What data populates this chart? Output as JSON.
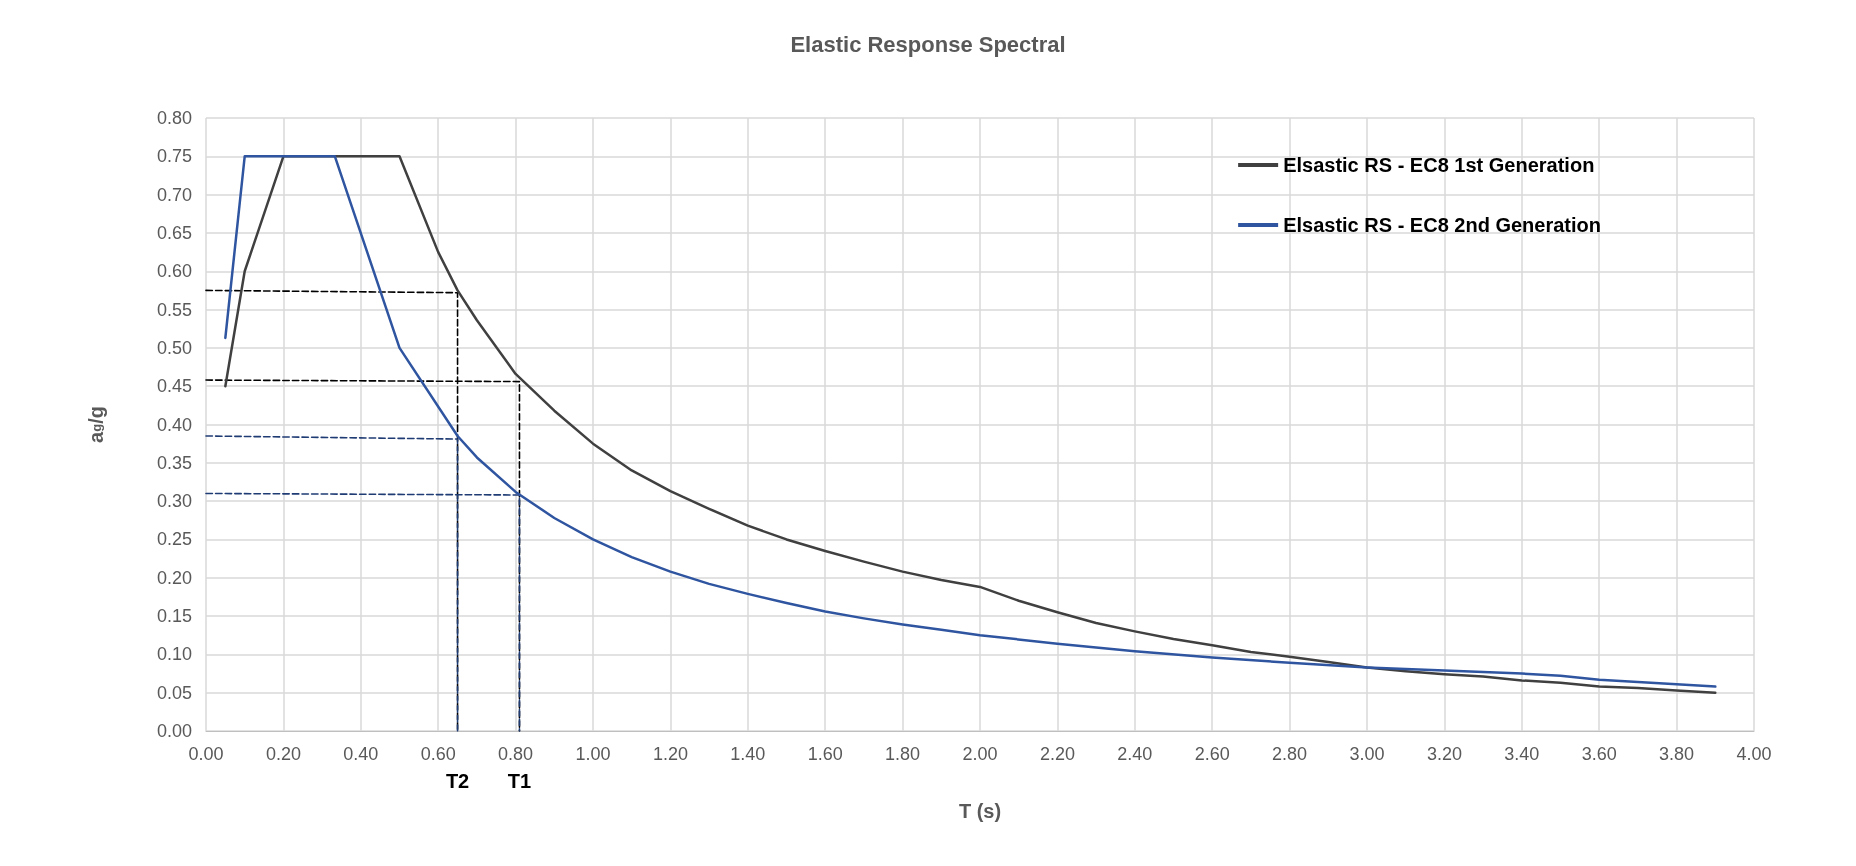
{
  "chart_data": {
    "type": "line",
    "title": "Elastic Response Spectral",
    "xlabel": "T (s)",
    "ylabel": "a$_{g}$/g",
    "xlim": [
      0,
      4
    ],
    "xticks": [
      {
        "value": 0,
        "label": "0.00"
      },
      {
        "value": 0.2,
        "label": "0.20"
      },
      {
        "value": 0.4,
        "label": "0.40"
      },
      {
        "value": 0.6,
        "label": "0.60"
      },
      {
        "value": 0.8,
        "label": "0.80"
      },
      {
        "value": 1,
        "label": "1.00"
      },
      {
        "value": 1.2,
        "label": "1.20"
      },
      {
        "value": 1.4,
        "label": "1.40"
      },
      {
        "value": 1.6,
        "label": "1.60"
      },
      {
        "value": 1.8,
        "label": "1.80"
      },
      {
        "value": 2,
        "label": "2.00"
      },
      {
        "value": 2.2,
        "label": "2.20"
      },
      {
        "value": 2.4,
        "label": "2.40"
      },
      {
        "value": 2.6,
        "label": "2.60"
      },
      {
        "value": 2.8,
        "label": "2.80"
      },
      {
        "value": 3,
        "label": "3.00"
      },
      {
        "value": 3.2,
        "label": "3.20"
      },
      {
        "value": 3.4,
        "label": "3.40"
      },
      {
        "value": 3.6,
        "label": "3.60"
      },
      {
        "value": 3.8,
        "label": "3.80"
      },
      {
        "value": 4,
        "label": "4.00"
      }
    ],
    "ylim": [
      0,
      0.8
    ],
    "yticks": [
      {
        "value": 0,
        "label": "0.00"
      },
      {
        "value": 0.05,
        "label": "0.05"
      },
      {
        "value": 0.1,
        "label": "0.10"
      },
      {
        "value": 0.15,
        "label": "0.15"
      },
      {
        "value": 0.2,
        "label": "0.20"
      },
      {
        "value": 0.25,
        "label": "0.25"
      },
      {
        "value": 0.3,
        "label": "0.30"
      },
      {
        "value": 0.35,
        "label": "0.35"
      },
      {
        "value": 0.4,
        "label": "0.40"
      },
      {
        "value": 0.45,
        "label": "0.45"
      },
      {
        "value": 0.5,
        "label": "0.50"
      },
      {
        "value": 0.55,
        "label": "0.55"
      },
      {
        "value": 0.6,
        "label": "0.60"
      },
      {
        "value": 0.65,
        "label": "0.65"
      },
      {
        "value": 0.7,
        "label": "0.70"
      },
      {
        "value": 0.75,
        "label": "0.75"
      },
      {
        "value": 0.8,
        "label": "0.80"
      }
    ],
    "grid": true,
    "legend": "top right",
    "line_style": "solid",
    "series": [
      {
        "name": "Elsastic RS - EC8 1st Generation",
        "color": "#404040",
        "x": [
          0.05,
          0.1,
          0.2,
          0.5,
          0.6,
          0.65,
          0.7,
          0.8,
          0.9,
          1.0,
          1.1,
          1.2,
          1.3,
          1.4,
          1.5,
          1.6,
          1.7,
          1.8,
          1.9,
          2.0,
          2.1,
          2.2,
          2.3,
          2.4,
          2.5,
          2.6,
          2.7,
          2.8,
          2.9,
          3.0,
          3.1,
          3.2,
          3.3,
          3.4,
          3.5,
          3.6,
          3.7,
          3.8,
          3.9
        ],
        "values": [
          0.45,
          0.6,
          0.75,
          0.75,
          0.625,
          0.575,
          0.536,
          0.466,
          0.418,
          0.375,
          0.34,
          0.313,
          0.29,
          0.268,
          0.25,
          0.235,
          0.221,
          0.208,
          0.197,
          0.188,
          0.17,
          0.155,
          0.141,
          0.13,
          0.12,
          0.112,
          0.103,
          0.097,
          0.09,
          0.083,
          0.078,
          0.074,
          0.071,
          0.066,
          0.063,
          0.058,
          0.056,
          0.053,
          0.05
        ]
      },
      {
        "name": "Elsastic RS - EC8 2nd Generation",
        "color": "#2f55a0",
        "x": [
          0.05,
          0.1,
          0.333,
          0.5,
          0.65,
          0.7,
          0.8,
          0.9,
          1.0,
          1.1,
          1.2,
          1.3,
          1.4,
          1.5,
          1.6,
          1.7,
          1.8,
          1.9,
          2.0,
          2.2,
          2.4,
          2.6,
          2.8,
          3.0,
          3.2,
          3.4,
          3.5,
          3.6,
          3.8,
          3.9
        ],
        "values": [
          0.513,
          0.75,
          0.75,
          0.5,
          0.385,
          0.357,
          0.312,
          0.278,
          0.25,
          0.227,
          0.208,
          0.192,
          0.179,
          0.167,
          0.156,
          0.147,
          0.139,
          0.132,
          0.125,
          0.114,
          0.104,
          0.096,
          0.089,
          0.083,
          0.079,
          0.075,
          0.072,
          0.067,
          0.061,
          0.058
        ]
      },
      {
        "color": "#000000",
        "line_style": "dashed",
        "x": [
          0,
          0.65,
          0.65
        ],
        "values": [
          0.575,
          0.572,
          0
        ]
      },
      {
        "color": "#000000",
        "line_style": "dashed",
        "x": [
          0,
          0.81,
          0.81
        ],
        "values": [
          0.458,
          0.456,
          0
        ]
      },
      {
        "color": "#1f3b73",
        "line_style": "dashed",
        "x": [
          0,
          0.65,
          0.65
        ],
        "values": [
          0.385,
          0.381,
          0
        ]
      },
      {
        "color": "#1f3b73",
        "line_style": "dashed",
        "x": [
          0,
          0.81,
          0.81
        ],
        "values": [
          0.31,
          0.308,
          0
        ]
      }
    ],
    "annotations": [
      {
        "text": "T2",
        "x": 0.65,
        "y": 0
      },
      {
        "text": "T1",
        "x": 0.81,
        "y": 0
      }
    ]
  }
}
